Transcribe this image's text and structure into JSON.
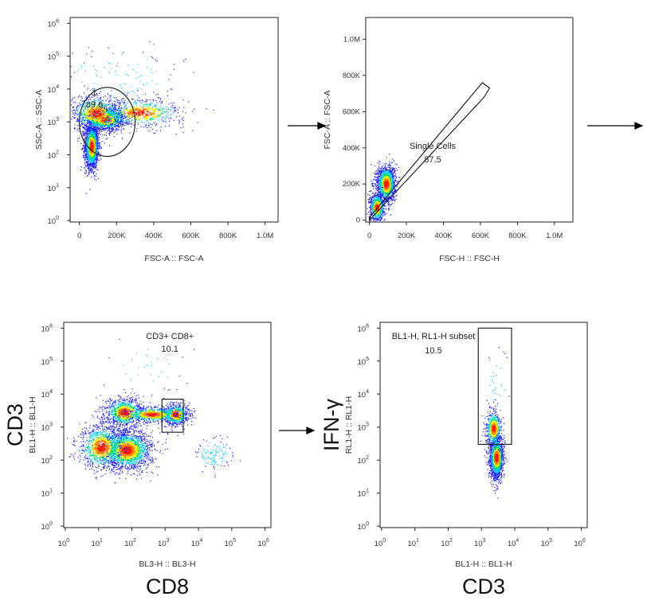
{
  "chart_data": [
    {
      "id": "p1",
      "type": "scatter",
      "title": "",
      "xlabel": "FSC-A :: FSC-A",
      "ylabel": "SSC-A :: SSC-A",
      "xscale": "linear",
      "yscale": "log",
      "xlim": [
        -50000,
        1070000
      ],
      "ylim": [
        0.9,
        1500000
      ],
      "xticks": [
        0,
        200000,
        400000,
        600000,
        800000,
        1000000
      ],
      "xtick_labels": [
        "0",
        "200K",
        "400K",
        "600K",
        "800K",
        "1.0M"
      ],
      "ytick_labels": [
        {
          "base": "10",
          "exp": "0",
          "v": 1
        },
        {
          "base": "10",
          "exp": "1",
          "v": 10
        },
        {
          "base": "10",
          "exp": "2",
          "v": 100
        },
        {
          "base": "10",
          "exp": "3",
          "v": 1000
        },
        {
          "base": "10",
          "exp": "4",
          "v": 10000
        },
        {
          "base": "10",
          "exp": "5",
          "v": 100000
        },
        {
          "base": "10",
          "exp": "6",
          "v": 1000000
        }
      ],
      "clusters": [
        {
          "x": 65000,
          "y": 180,
          "sx": 18000,
          "sy": 0.34,
          "n": 1900
        },
        {
          "x": 140000,
          "y": 1200,
          "sx": 55000,
          "sy": 0.17,
          "n": 1300
        },
        {
          "x": 90000,
          "y": 1800,
          "sx": 70000,
          "sy": 0.28,
          "n": 700
        },
        {
          "x": 330000,
          "y": 1900,
          "sx": 120000,
          "sy": 0.22,
          "n": 550
        },
        {
          "x": 220000,
          "y": 25000,
          "sx": 160000,
          "sy": 0.45,
          "n": 110
        }
      ],
      "gate": {
        "shape": "ellipse",
        "label": "1",
        "value": "89.6",
        "cx": 150000,
        "cy": 1000,
        "rx": 150000,
        "ry_log": 1.05
      }
    },
    {
      "id": "p2",
      "type": "scatter",
      "title": "",
      "xlabel": "FSC-H :: FSC-H",
      "ylabel": "FSC-A :: FSC-A",
      "xscale": "linear",
      "yscale": "linear",
      "xlim": [
        -20000,
        1100000
      ],
      "ylim": [
        -10000,
        1120000
      ],
      "xticks": [
        0,
        200000,
        400000,
        600000,
        800000,
        1000000
      ],
      "xtick_labels": [
        "0",
        "200K",
        "400K",
        "600K",
        "800K",
        "1.0M"
      ],
      "yticks": [
        0,
        200000,
        400000,
        600000,
        800000,
        1000000
      ],
      "ytick_labels": [
        "0",
        "200K",
        "400K",
        "600K",
        "800K",
        "1.0M"
      ],
      "clusters": [
        {
          "x": 90000,
          "y": 200000,
          "sx": 25000,
          "sy": 50000,
          "n": 1500
        },
        {
          "x": 40000,
          "y": 70000,
          "sx": 20000,
          "sy": 40000,
          "n": 700
        }
      ],
      "gate": {
        "shape": "polygon",
        "label": "Single Cells",
        "value": "87.5",
        "points": [
          [
            0,
            0
          ],
          [
            620000,
            680000
          ],
          [
            650000,
            730000
          ],
          [
            610000,
            760000
          ],
          [
            0,
            15000
          ]
        ]
      }
    },
    {
      "id": "p3",
      "type": "scatter",
      "title": "",
      "xlabel": "BL3-H :: BL3-H",
      "ylabel": "BL1-H :: BL1-H",
      "big_xlabel": "CD8",
      "big_ylabel": "CD3",
      "xscale": "log",
      "yscale": "log",
      "xlim": [
        0.9,
        1500000
      ],
      "ylim": [
        0.9,
        1500000
      ],
      "xtick_labels": [
        {
          "base": "10",
          "exp": "0",
          "v": 1
        },
        {
          "base": "10",
          "exp": "1",
          "v": 10
        },
        {
          "base": "10",
          "exp": "2",
          "v": 100
        },
        {
          "base": "10",
          "exp": "3",
          "v": 1000
        },
        {
          "base": "10",
          "exp": "4",
          "v": 10000
        },
        {
          "base": "10",
          "exp": "5",
          "v": 100000
        },
        {
          "base": "10",
          "exp": "6",
          "v": 1000000
        }
      ],
      "ytick_labels": [
        {
          "base": "10",
          "exp": "0",
          "v": 1
        },
        {
          "base": "10",
          "exp": "1",
          "v": 10
        },
        {
          "base": "10",
          "exp": "2",
          "v": 100
        },
        {
          "base": "10",
          "exp": "3",
          "v": 1000
        },
        {
          "base": "10",
          "exp": "4",
          "v": 10000
        },
        {
          "base": "10",
          "exp": "5",
          "v": 100000
        },
        {
          "base": "10",
          "exp": "6",
          "v": 1000000
        }
      ],
      "clusters": [
        {
          "x": 70,
          "y": 200,
          "sx": 0.38,
          "sy": 0.3,
          "n": 1800
        },
        {
          "x": 60,
          "y": 2800,
          "sx": 0.3,
          "sy": 0.22,
          "n": 900
        },
        {
          "x": 2000,
          "y": 2400,
          "sx": 0.2,
          "sy": 0.16,
          "n": 700
        },
        {
          "x": 400,
          "y": 2400,
          "sx": 0.45,
          "sy": 0.12,
          "n": 500
        },
        {
          "x": 12,
          "y": 250,
          "sx": 0.35,
          "sy": 0.35,
          "n": 800
        },
        {
          "x": 30000,
          "y": 150,
          "sx": 0.3,
          "sy": 0.25,
          "n": 120
        },
        {
          "x": 200,
          "y": 60000,
          "sx": 0.7,
          "sy": 0.5,
          "n": 40
        }
      ],
      "gate": {
        "shape": "rect",
        "label": "CD3+ CD8+",
        "value": "10.1",
        "x0": 800,
        "x1": 3500,
        "y0": 700,
        "y1": 7000
      }
    },
    {
      "id": "p4",
      "type": "scatter",
      "title": "",
      "xlabel": "BL1-H :: BL1-H",
      "ylabel": "RL1-H :: RL1-H",
      "big_xlabel": "CD3",
      "big_ylabel": "IFN-γ",
      "xscale": "log",
      "yscale": "log",
      "xlim": [
        0.9,
        1500000
      ],
      "ylim": [
        0.9,
        1500000
      ],
      "xtick_labels": [
        {
          "base": "10",
          "exp": "0",
          "v": 1
        },
        {
          "base": "10",
          "exp": "1",
          "v": 10
        },
        {
          "base": "10",
          "exp": "2",
          "v": 100
        },
        {
          "base": "10",
          "exp": "3",
          "v": 1000
        },
        {
          "base": "10",
          "exp": "4",
          "v": 10000
        },
        {
          "base": "10",
          "exp": "5",
          "v": 100000
        },
        {
          "base": "10",
          "exp": "6",
          "v": 1000000
        }
      ],
      "ytick_labels": [
        {
          "base": "10",
          "exp": "0",
          "v": 1
        },
        {
          "base": "10",
          "exp": "1",
          "v": 10
        },
        {
          "base": "10",
          "exp": "2",
          "v": 100
        },
        {
          "base": "10",
          "exp": "3",
          "v": 1000
        },
        {
          "base": "10",
          "exp": "4",
          "v": 10000
        },
        {
          "base": "10",
          "exp": "5",
          "v": 100000
        },
        {
          "base": "10",
          "exp": "6",
          "v": 1000000
        }
      ],
      "clusters": [
        {
          "x": 2800,
          "y": 120,
          "sx": 0.1,
          "sy": 0.32,
          "n": 1600
        },
        {
          "x": 2300,
          "y": 900,
          "sx": 0.12,
          "sy": 0.28,
          "n": 500
        },
        {
          "x": 3000,
          "y": 30000,
          "sx": 0.2,
          "sy": 0.6,
          "n": 30
        }
      ],
      "gate": {
        "shape": "rect",
        "label": "BL1-H, RL1-H subset",
        "value": "10.5",
        "x0": 800,
        "x1": 8000,
        "y0": 300,
        "y1": 1000000
      }
    }
  ],
  "palette": [
    "#1a1aff",
    "#00c8ff",
    "#00e070",
    "#f0f000",
    "#ff8000",
    "#ff1a00"
  ]
}
